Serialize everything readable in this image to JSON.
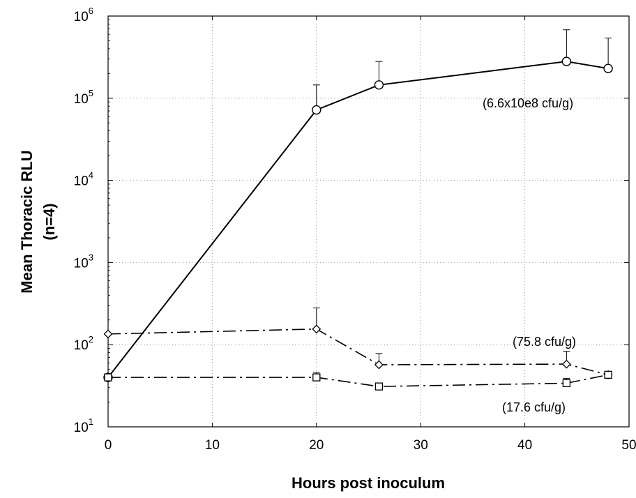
{
  "chart_data": {
    "type": "line",
    "xlabel": "Hours post inoculum",
    "ylabel": "Mean Thoracic RLU",
    "ylabel2": "(n=4)",
    "xlim": [
      0,
      50
    ],
    "ylim": [
      10,
      1000000
    ],
    "yscale": "log",
    "xticks": [
      "0",
      "10",
      "20",
      "30",
      "40",
      "50"
    ],
    "yticks": [
      {
        "base": "10",
        "exp": "1",
        "value": 10
      },
      {
        "base": "10",
        "exp": "2",
        "value": 100
      },
      {
        "base": "10",
        "exp": "3",
        "value": 1000
      },
      {
        "base": "10",
        "exp": "4",
        "value": 10000
      },
      {
        "base": "10",
        "exp": "5",
        "value": 100000
      },
      {
        "base": "10",
        "exp": "6",
        "value": 1000000
      }
    ],
    "grid": true,
    "series": [
      {
        "marker": "circle",
        "line_style": "solid",
        "annotation": "(6.6x10e8 cfu/g)",
        "x": [
          0,
          20,
          26,
          44,
          48
        ],
        "y": [
          40,
          72000,
          145000,
          280000,
          230000
        ],
        "err_upper": [
          null,
          145000,
          280000,
          680000,
          540000
        ]
      },
      {
        "marker": "diamond",
        "line_style": "dashdot",
        "annotation": "(75.8 cfu/g)",
        "x": [
          0,
          20,
          26,
          44,
          48
        ],
        "y": [
          135,
          155,
          57,
          58,
          43
        ],
        "err_upper": [
          null,
          280,
          78,
          83,
          null
        ]
      },
      {
        "marker": "square",
        "line_style": "dashdot",
        "annotation": "(17.6 cfu/g)",
        "x": [
          0,
          20,
          26,
          44,
          48
        ],
        "y": [
          40,
          40,
          31,
          34,
          43
        ],
        "err_upper": [
          null,
          46,
          null,
          39,
          null
        ]
      }
    ]
  }
}
